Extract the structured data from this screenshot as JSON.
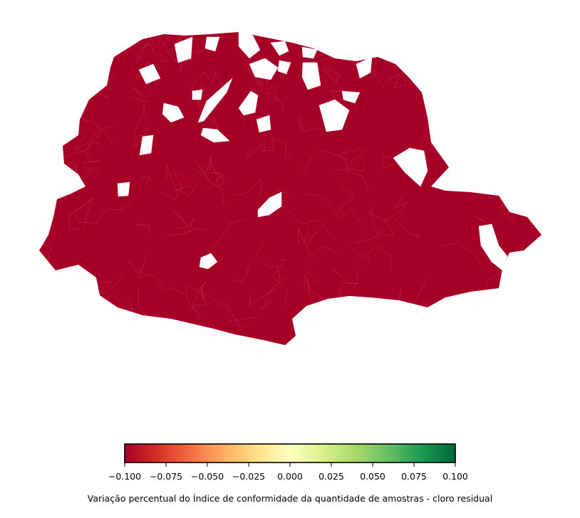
{
  "map": {
    "fill_color": "#a50026",
    "border_color": "#c94a62",
    "background": "#ffffff"
  },
  "colorbar": {
    "colormap": "RdYlGn",
    "vmin": -0.1,
    "vmax": 0.1,
    "stops": [
      "#a50026",
      "#d73027",
      "#f46d43",
      "#fdae61",
      "#fee08b",
      "#ffffbf",
      "#d9ef8b",
      "#a6d96a",
      "#66bd63",
      "#1a9850",
      "#006837"
    ],
    "ticks": [
      "−0.100",
      "−0.075",
      "−0.050",
      "−0.025",
      "0.000",
      "0.025",
      "0.050",
      "0.075",
      "0.100"
    ],
    "label": "Variação percentual do Índice de conformidade da quantidade de amostras - cloro residual"
  }
}
